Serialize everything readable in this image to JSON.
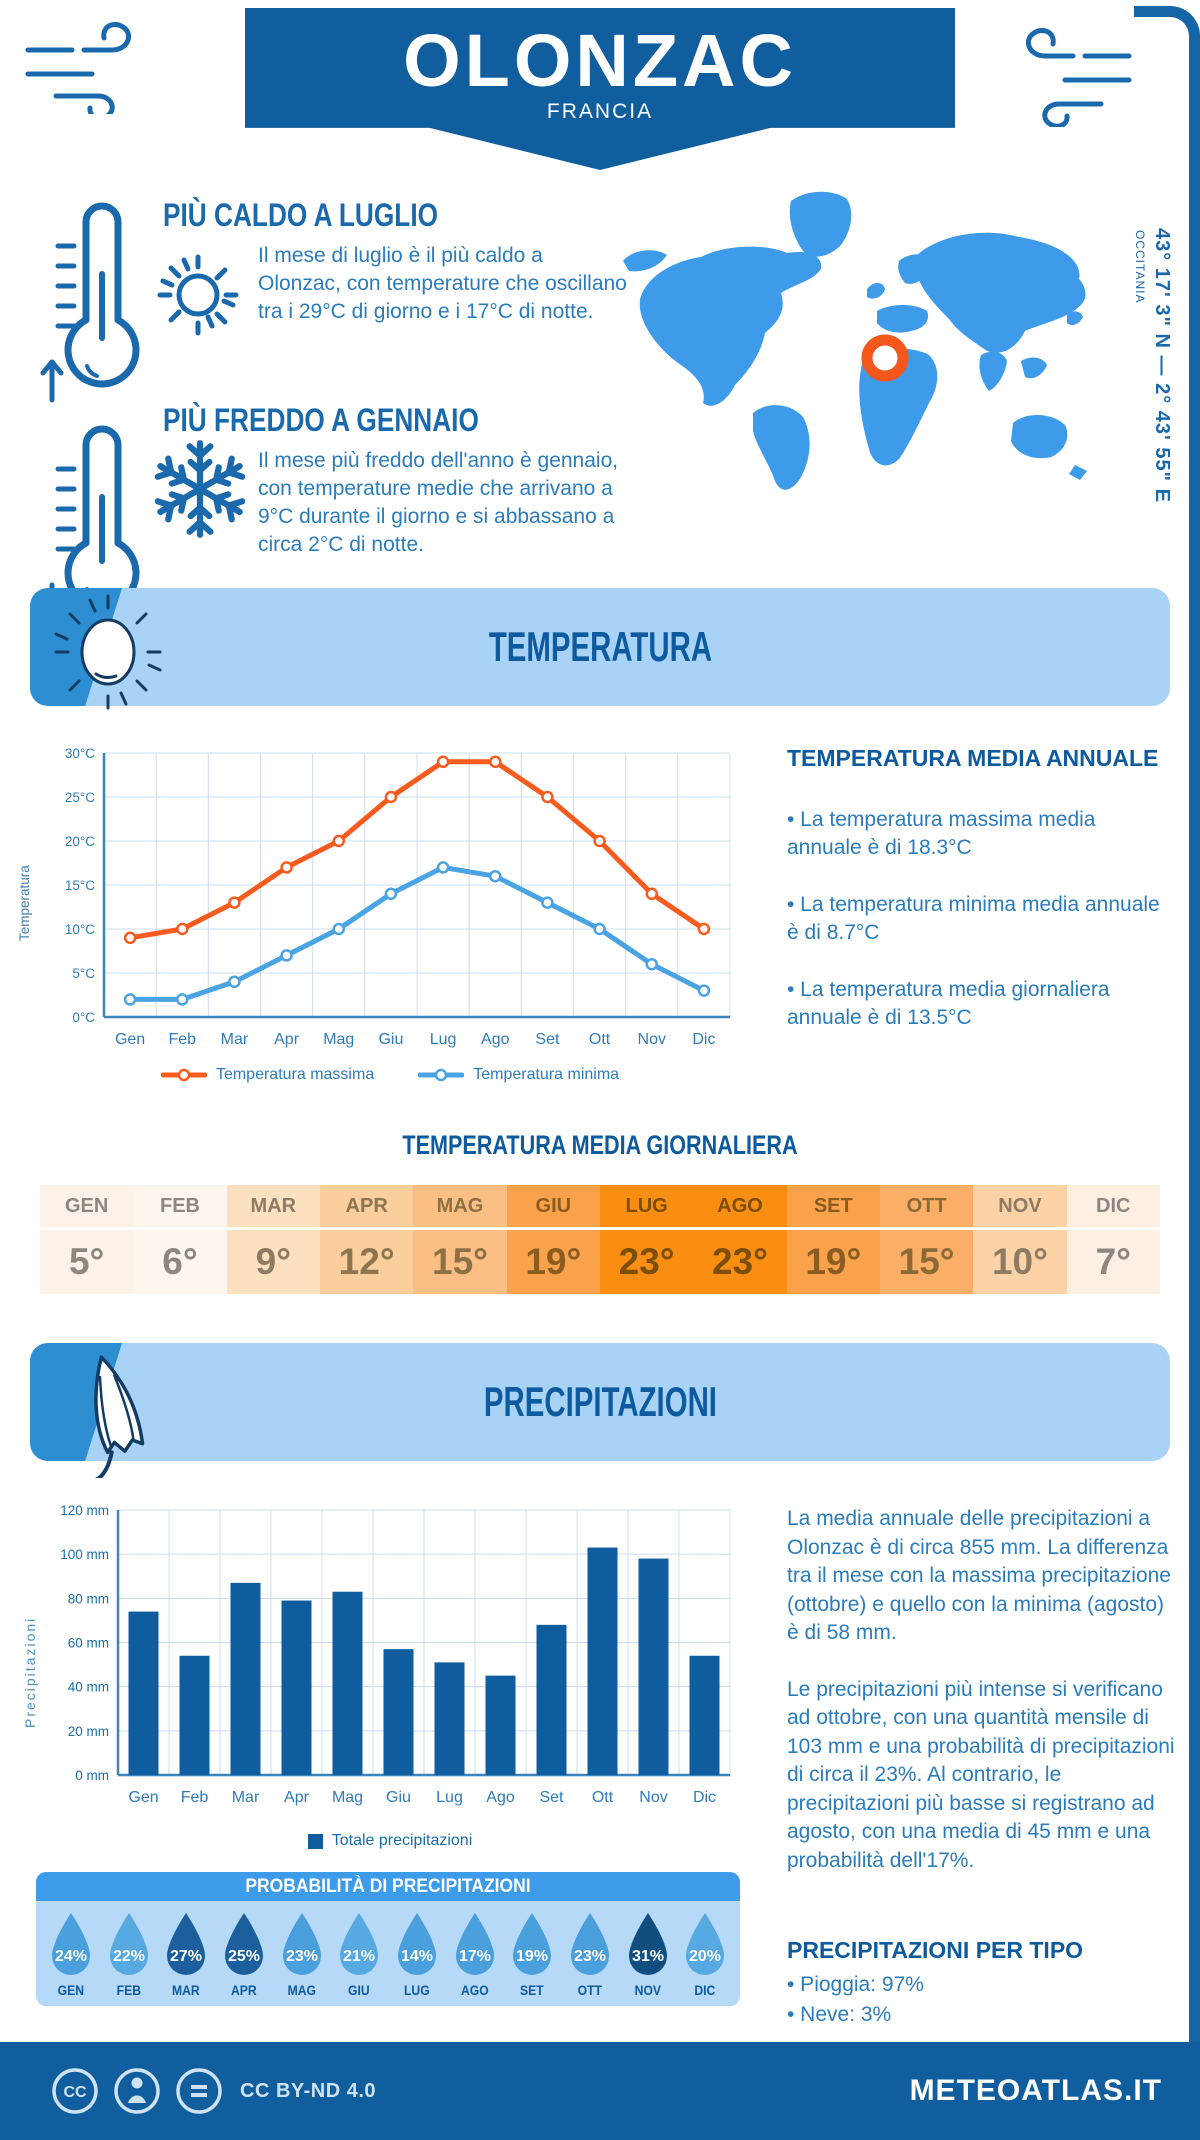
{
  "header": {
    "title": "OLONZAC",
    "subtitle": "FRANCIA",
    "coordinates": "43° 17' 3\" N — 2° 43' 55\" E",
    "region": "OCCITANIA"
  },
  "highlights": {
    "hot": {
      "title": "PIÙ CALDO A LUGLIO",
      "text": "Il mese di luglio è il più caldo a Olonzac, con temperature che oscillano tra i 29°C di giorno e i 17°C di notte."
    },
    "cold": {
      "title": "PIÙ FREDDO A GENNAIO",
      "text": "Il mese più freddo dell'anno è gennaio, con temperature medie che arrivano a 9°C durante il giorno e si abbassano a circa 2°C di notte."
    }
  },
  "temperature_section": {
    "banner_title": "TEMPERATURA",
    "annual": {
      "title": "TEMPERATURA MEDIA ANNUALE",
      "bullets": [
        "• La temperatura massima media annuale è di 18.3°C",
        "• La temperatura minima media annuale è di 8.7°C",
        "• La temperatura media giornaliera annuale è di 13.5°C"
      ]
    },
    "daily": {
      "title": "TEMPERATURA MEDIA GIORNALIERA",
      "months": [
        "GEN",
        "FEB",
        "MAR",
        "APR",
        "MAG",
        "GIU",
        "LUG",
        "AGO",
        "SET",
        "OTT",
        "NOV",
        "DIC"
      ],
      "values": [
        "5°",
        "6°",
        "9°",
        "12°",
        "15°",
        "19°",
        "23°",
        "23°",
        "19°",
        "15°",
        "10°",
        "7°"
      ],
      "cell_colors": [
        "#fdf2e7",
        "#fdf6ef",
        "#fce1c1",
        "#fbce9e",
        "#fbbf83",
        "#faa14b",
        "#f98e12",
        "#f98e12",
        "#faa14b",
        "#fbae66",
        "#fcd2a6",
        "#fdf0e2"
      ],
      "text_colors": [
        "#8c8780",
        "#8c8780",
        "#8d7c63",
        "#8d764f",
        "#8d7146",
        "#8a5c20",
        "#7c4e08",
        "#7c4e08",
        "#8a5c20",
        "#8c6a38",
        "#8d7c63",
        "#8c8780"
      ]
    }
  },
  "precipitation_section": {
    "banner_title": "PRECIPITAZIONI",
    "paragraphs": [
      "La media annuale delle precipitazioni a Olonzac è di circa 855 mm. La differenza tra il mese con la massima precipitazione (ottobre) e quello con la minima (agosto) è di 58 mm.",
      "Le precipitazioni più intense si verificano ad ottobre, con una quantità mensile di 103 mm e una probabilità di precipitazioni di circa il 23%. Al contrario, le precipitazioni più basse si registrano ad agosto, con una media di 45 mm e una probabilità dell'17%."
    ],
    "probability": {
      "title": "PROBABILITÀ DI PRECIPITAZIONI",
      "months": [
        "GEN",
        "FEB",
        "MAR",
        "APR",
        "MAG",
        "GIU",
        "LUG",
        "AGO",
        "SET",
        "OTT",
        "NOV",
        "DIC"
      ],
      "values": [
        "24%",
        "22%",
        "27%",
        "25%",
        "23%",
        "21%",
        "14%",
        "17%",
        "19%",
        "23%",
        "31%",
        "20%"
      ],
      "drop_colors": [
        "#4a9fdd",
        "#56a9e1",
        "#1b609c",
        "#1b609c",
        "#4a9fdd",
        "#56a9e1",
        "#4a9fdd",
        "#4a9fdd",
        "#4a9fdd",
        "#4a9fdd",
        "#114e80",
        "#56a9e1"
      ]
    },
    "types": {
      "title": "PRECIPITAZIONI PER TIPO",
      "items": [
        "• Pioggia: 97%",
        "• Neve: 3%"
      ]
    }
  },
  "footer": {
    "license": "CC BY-ND 4.0",
    "site": "METEOATLAS.IT"
  },
  "colors": {
    "primary_blue": "#115e9e",
    "title_blue": "#0d5a9e",
    "body_blue": "#2b7cbd",
    "banner_light_blue": "#a9d3f6",
    "map_blue": "#3d9be9",
    "marker_orange": "#f4571c",
    "max_line": "#f95b1e",
    "min_line": "#4aa3e2",
    "bar_blue": "#0f5d9e"
  },
  "chart_data": [
    {
      "type": "line",
      "title": "Temperatura media giornaliera (massima e minima) per mese",
      "categories": [
        "Gen",
        "Feb",
        "Mar",
        "Apr",
        "Mag",
        "Giu",
        "Lug",
        "Ago",
        "Set",
        "Ott",
        "Nov",
        "Dic"
      ],
      "series": [
        {
          "name": "Temperatura massima",
          "color": "#f95b1e",
          "values": [
            9,
            10,
            13,
            17,
            20,
            25,
            29,
            29,
            25,
            20,
            14,
            10
          ]
        },
        {
          "name": "Temperatura minima",
          "color": "#4aa3e2",
          "values": [
            2,
            2,
            4,
            7,
            10,
            14,
            17,
            16,
            13,
            10,
            6,
            3
          ]
        }
      ],
      "xlabel": "",
      "ylabel": "Temperatura",
      "ylim": [
        0,
        30
      ],
      "ytick_step": 5,
      "ytick_suffix": "°C",
      "grid": true,
      "legend_position": "bottom"
    },
    {
      "type": "bar",
      "title": "Totale precipitazioni mensili",
      "categories": [
        "Gen",
        "Feb",
        "Mar",
        "Apr",
        "Mag",
        "Giu",
        "Lug",
        "Ago",
        "Set",
        "Ott",
        "Nov",
        "Dic"
      ],
      "series": [
        {
          "name": "Totale precipitazioni",
          "color": "#0f5d9e",
          "values": [
            74,
            54,
            87,
            79,
            83,
            57,
            51,
            45,
            68,
            103,
            98,
            54
          ]
        }
      ],
      "xlabel": "",
      "ylabel": "Precipitazioni",
      "ylim": [
        0,
        120
      ],
      "ytick_step": 20,
      "ytick_suffix": " mm",
      "grid": true,
      "legend_position": "bottom"
    }
  ]
}
